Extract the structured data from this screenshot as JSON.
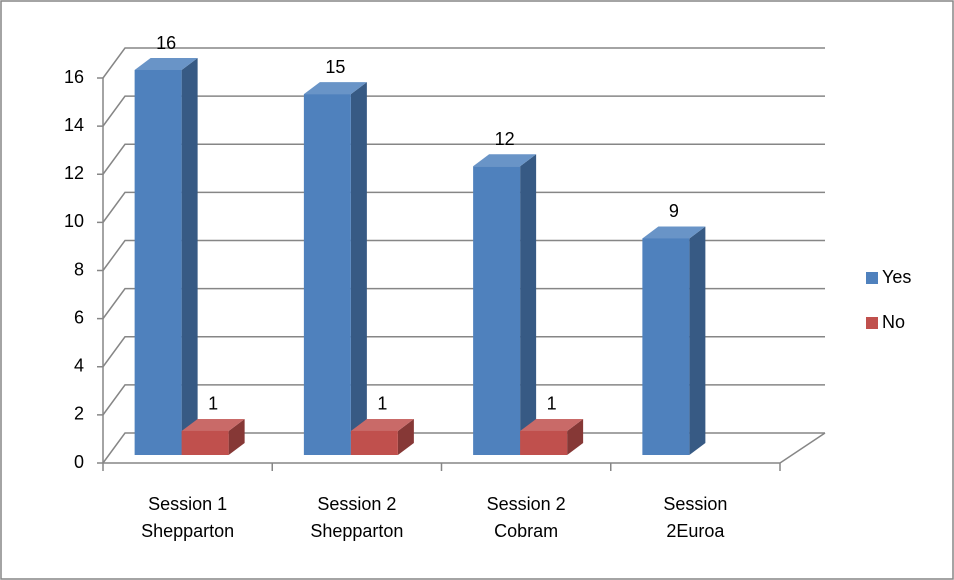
{
  "chart_data": {
    "type": "bar3d",
    "categories": [
      [
        "Session 1",
        "Shepparton"
      ],
      [
        "Session 2",
        "Shepparton"
      ],
      [
        "Session 2",
        "Cobram"
      ],
      [
        "Session",
        "2Euroa"
      ]
    ],
    "series": [
      {
        "name": "Yes",
        "color": "#4f81bd",
        "values": [
          16,
          15,
          12,
          9
        ]
      },
      {
        "name": "No",
        "color": "#c0504d",
        "values": [
          1,
          1,
          1,
          null
        ]
      }
    ],
    "ylim": [
      0,
      16
    ],
    "yticks": [
      0,
      2,
      4,
      6,
      8,
      10,
      12,
      14,
      16
    ],
    "grid": true,
    "legend": "right"
  }
}
